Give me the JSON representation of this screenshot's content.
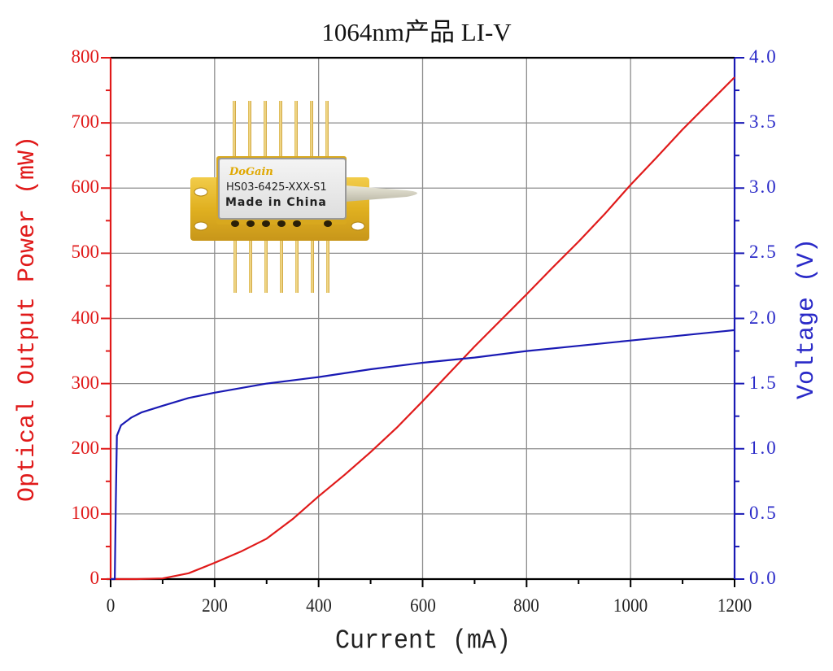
{
  "chart_data": {
    "type": "line",
    "title": "1064nm产品 LI-V",
    "xlabel": "Current (mA)",
    "ylabel": "Optical Output Power (mW)",
    "y2label": "Voltage (V)",
    "xlim": [
      0,
      1200
    ],
    "ylim": [
      0,
      800
    ],
    "y2lim": [
      0,
      4.0
    ],
    "xticks": [
      "0",
      "200",
      "400",
      "600",
      "800",
      "1000",
      "1200"
    ],
    "yticks": [
      "0",
      "100",
      "200",
      "300",
      "400",
      "500",
      "600",
      "700",
      "800"
    ],
    "y2ticks": [
      "0.0",
      "0.5",
      "1.0",
      "1.5",
      "2.0",
      "2.5",
      "3.0",
      "3.5",
      "4.0"
    ],
    "grid": true,
    "series": [
      {
        "name": "Optical Output Power",
        "axis": "left",
        "color": "#e01a1a",
        "x": [
          0,
          50,
          100,
          150,
          200,
          250,
          300,
          350,
          400,
          450,
          500,
          550,
          600,
          650,
          700,
          750,
          800,
          850,
          900,
          950,
          1000,
          1050,
          1100,
          1150,
          1200
        ],
        "values": [
          0,
          0,
          1,
          9,
          25,
          42,
          62,
          92,
          127,
          160,
          195,
          232,
          273,
          315,
          357,
          397,
          437,
          478,
          518,
          560,
          605,
          647,
          690,
          730,
          770
        ]
      },
      {
        "name": "Voltage",
        "axis": "right",
        "color": "#1a1ab4",
        "x": [
          0,
          8,
          10,
          12,
          20,
          40,
          60,
          100,
          150,
          200,
          300,
          400,
          500,
          600,
          700,
          800,
          900,
          1000,
          1100,
          1200
        ],
        "values": [
          0,
          0,
          0.6,
          1.1,
          1.18,
          1.24,
          1.28,
          1.33,
          1.39,
          1.43,
          1.5,
          1.55,
          1.61,
          1.66,
          1.7,
          1.75,
          1.79,
          1.83,
          1.87,
          1.91
        ]
      }
    ]
  },
  "inset": {
    "brand": "DoGain",
    "part_number": "HS03-6425-XXX-S1",
    "origin": "Made in China"
  },
  "colors": {
    "power_axis": "#e01a1a",
    "voltage_axis": "#1a1ab4",
    "grid": "#8c8c8c"
  }
}
